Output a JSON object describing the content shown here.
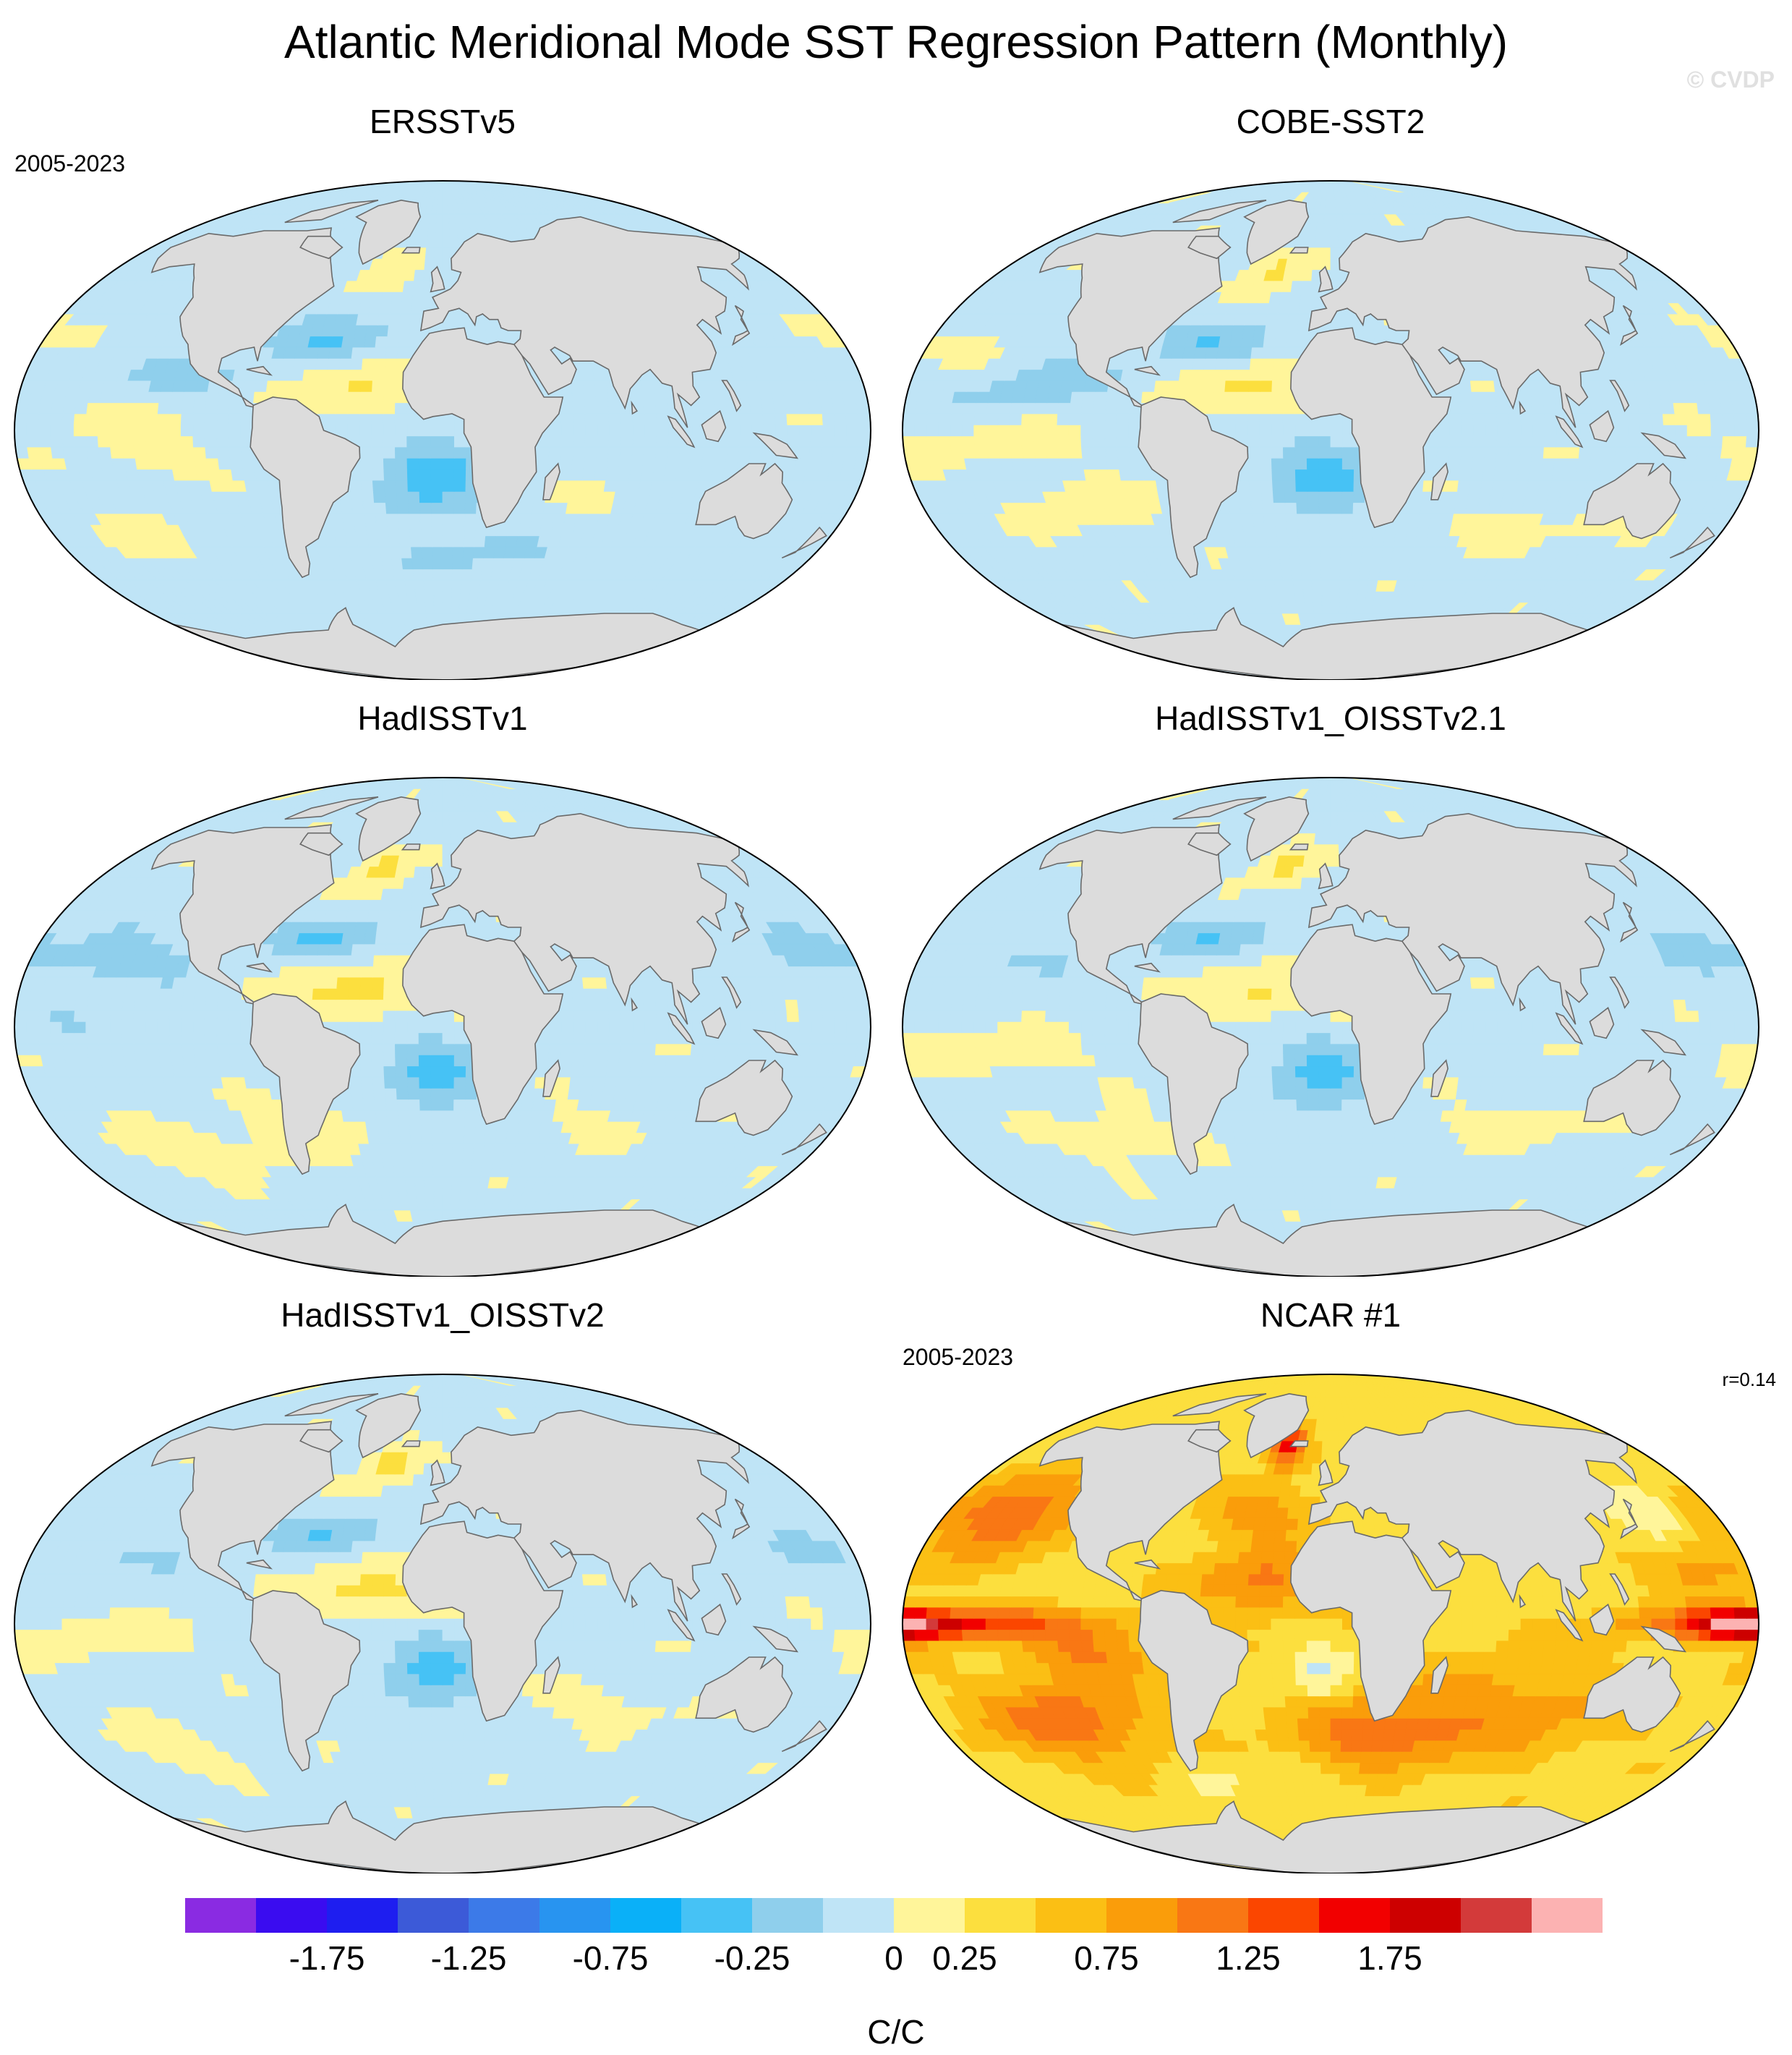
{
  "title": "Atlantic Meridional Mode SST Regression Pattern (Monthly)",
  "watermark": "© CVDP",
  "panels": [
    {
      "title": "ERSSTv5",
      "date": "2005-2023",
      "corr": "",
      "style": "obs_a"
    },
    {
      "title": "COBE-SST2",
      "date": "",
      "corr": "",
      "style": "obs_b"
    },
    {
      "title": "HadISSTv1",
      "date": "",
      "corr": "",
      "style": "obs_c"
    },
    {
      "title": "HadISSTv1_OISSTv2.1",
      "date": "",
      "corr": "",
      "style": "obs_d"
    },
    {
      "title": "HadISSTv1_OISSTv2",
      "date": "",
      "corr": "",
      "style": "obs_e"
    },
    {
      "title": "NCAR #1",
      "date": "2005-2023",
      "corr": "r=0.14",
      "style": "model"
    }
  ],
  "colorbar": {
    "unit": "C/C",
    "tick_labels": [
      "-1.75",
      "-1.25",
      "-0.75",
      "-0.25",
      "0",
      "0.25",
      "0.75",
      "1.25",
      "1.75"
    ],
    "colors": [
      "#8a2be2",
      "#3a0cf0",
      "#1e1ef0",
      "#3c5ad8",
      "#3c7ae8",
      "#2894f0",
      "#0ab0f8",
      "#46c2f5",
      "#8fcfec",
      "#bfe4f6",
      "#fff59a",
      "#fcdf3e",
      "#fbbf14",
      "#fa9d0a",
      "#f97714",
      "#fb4600",
      "#f20000",
      "#cd0000",
      "#d33a3a",
      "#fcb2b2"
    ],
    "land_color": "#dcdcdc"
  }
}
